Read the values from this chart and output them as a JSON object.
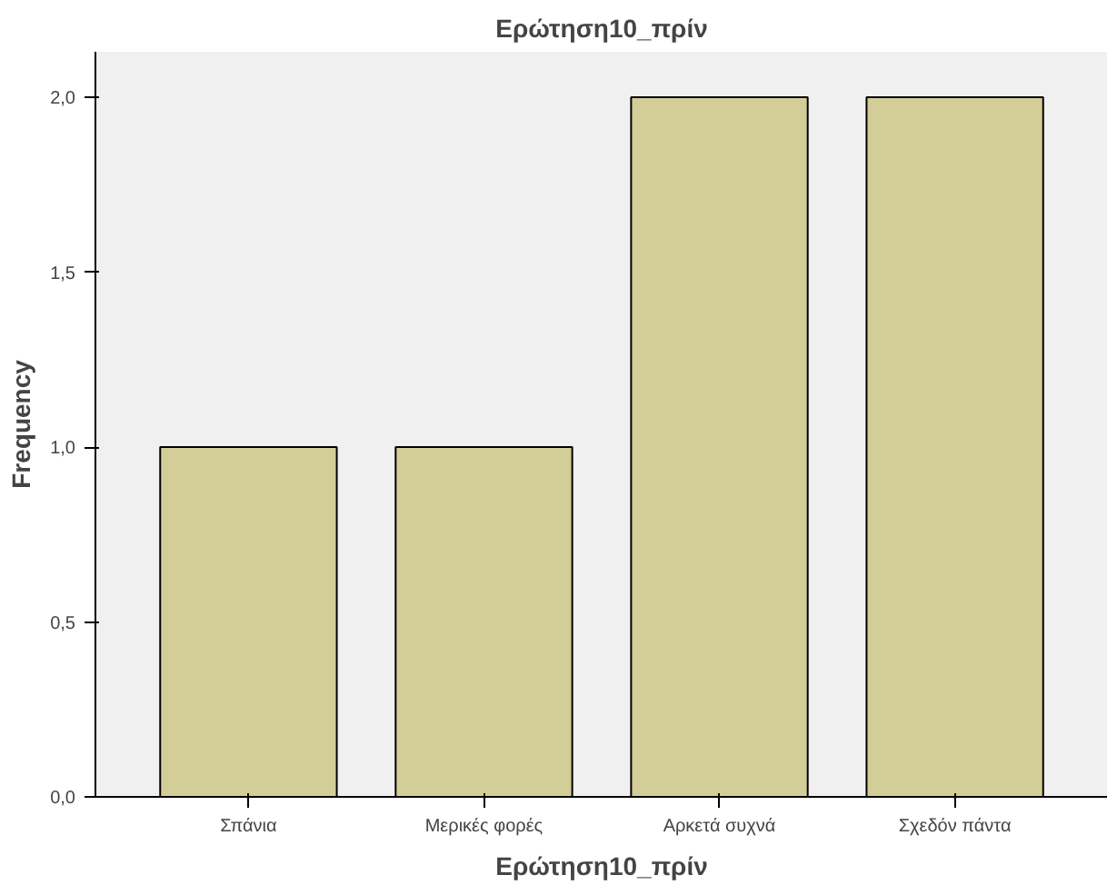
{
  "chart_data": {
    "type": "bar",
    "title": "Ερώτηση10_πρίν",
    "xlabel": "Ερώτηση10_πρίν",
    "ylabel": "Frequency",
    "categories": [
      "Σπάνια",
      "Μερικές φορές",
      "Αρκετά συχνά",
      "Σχεδόν πάντα"
    ],
    "values": [
      1,
      1,
      2,
      2
    ],
    "color": "#d3ce97",
    "ylim": [
      0,
      2.13
    ],
    "yticks": [
      {
        "value": 0,
        "label": "0,0"
      },
      {
        "value": 0.5,
        "label": "0,5"
      },
      {
        "value": 1,
        "label": "1,0"
      },
      {
        "value": 1.5,
        "label": "1,5"
      },
      {
        "value": 2,
        "label": "2,0"
      }
    ],
    "grid": false
  }
}
